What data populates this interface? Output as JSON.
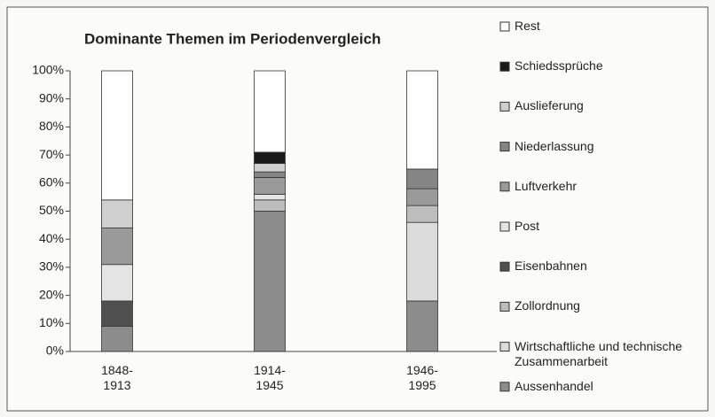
{
  "chart_data": {
    "type": "stacked_bar",
    "title": "Dominante Themen im Periodenvergleich",
    "categories": [
      "1848-1913",
      "1914-1945",
      "1946-1995"
    ],
    "series": [
      {
        "name": "Aussenhandel",
        "color": "#8c8c8c",
        "values": [
          9,
          50,
          18
        ]
      },
      {
        "name": "Wirtschaftliche und technische Zusammenarbeit",
        "color": "#dcdcdc",
        "values": [
          0,
          0,
          28
        ]
      },
      {
        "name": "Zollordnung",
        "color": "#bdbdbd",
        "values": [
          0,
          4,
          6
        ]
      },
      {
        "name": "Eisenbahnen",
        "color": "#505050",
        "values": [
          9,
          0,
          0
        ]
      },
      {
        "name": "Post",
        "color": "#e4e4e4",
        "values": [
          13,
          2,
          0
        ]
      },
      {
        "name": "Luftverkehr",
        "color": "#9a9a9a",
        "values": [
          13,
          6,
          6
        ]
      },
      {
        "name": "Niederlassung",
        "color": "#858585",
        "values": [
          0,
          2,
          7
        ]
      },
      {
        "name": "Auslieferung",
        "color": "#cfcfcf",
        "values": [
          10,
          3,
          0
        ]
      },
      {
        "name": "Schiedssprüche",
        "color": "#1a1a1a",
        "values": [
          0,
          4,
          0
        ]
      },
      {
        "name": "Rest",
        "color": "#ffffff",
        "values": [
          46,
          29,
          35
        ]
      }
    ],
    "ylim": [
      0,
      100
    ],
    "yticks": [
      {
        "value": 0,
        "label": "0%"
      },
      {
        "value": 10,
        "label": "10%"
      },
      {
        "value": 20,
        "label": "20%"
      },
      {
        "value": 30,
        "label": "30%"
      },
      {
        "value": 40,
        "label": "40%"
      },
      {
        "value": 50,
        "label": "50%"
      },
      {
        "value": 60,
        "label": "60%"
      },
      {
        "value": 70,
        "label": "70%"
      },
      {
        "value": 80,
        "label": "80%"
      },
      {
        "value": 90,
        "label": "90%"
      },
      {
        "value": 100,
        "label": "100%"
      }
    ]
  }
}
